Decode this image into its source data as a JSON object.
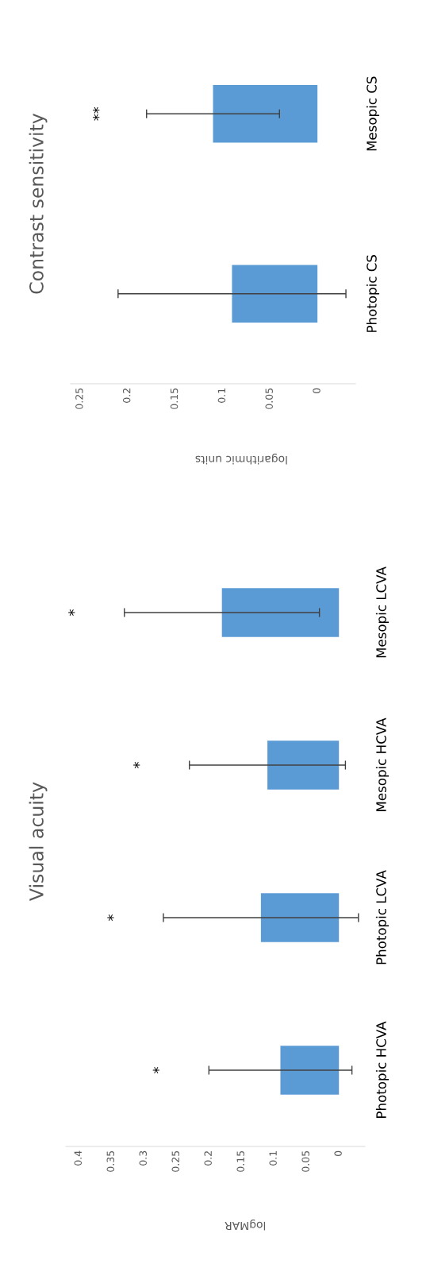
{
  "chart_data": [
    {
      "type": "bar",
      "orientation": "horizontal",
      "title": "Visual acuity",
      "xlabel": "logMAR",
      "categories": [
        "Mesopic LCVA",
        "Mesopic HCVA",
        "Photopic LCVA",
        "Photopic HCVA"
      ],
      "values": [
        0.18,
        0.11,
        0.12,
        0.09
      ],
      "errors": [
        0.15,
        0.12,
        0.15,
        0.11
      ],
      "color": "#5b9bd5",
      "xlim": [
        0.42,
        -0.04
      ],
      "xticks": [
        0,
        0.05,
        0.1,
        0.15,
        0.2,
        0.25,
        0.3,
        0.35,
        0.4
      ],
      "annotations": [
        "*",
        "*",
        "*",
        "*"
      ]
    },
    {
      "type": "bar",
      "orientation": "horizontal",
      "title": "Contrast sensitivity",
      "xlabel": "logarithmic units",
      "categories": [
        "Mesopic CS",
        "Photopic CS"
      ],
      "values": [
        0.11,
        0.09
      ],
      "errors": [
        0.07,
        0.12
      ],
      "color": "#5b9bd5",
      "xlim": [
        0.26,
        -0.04
      ],
      "xticks": [
        0,
        0.05,
        0.1,
        0.15,
        0.2,
        0.25
      ],
      "annotations": [
        "**",
        null
      ]
    }
  ]
}
